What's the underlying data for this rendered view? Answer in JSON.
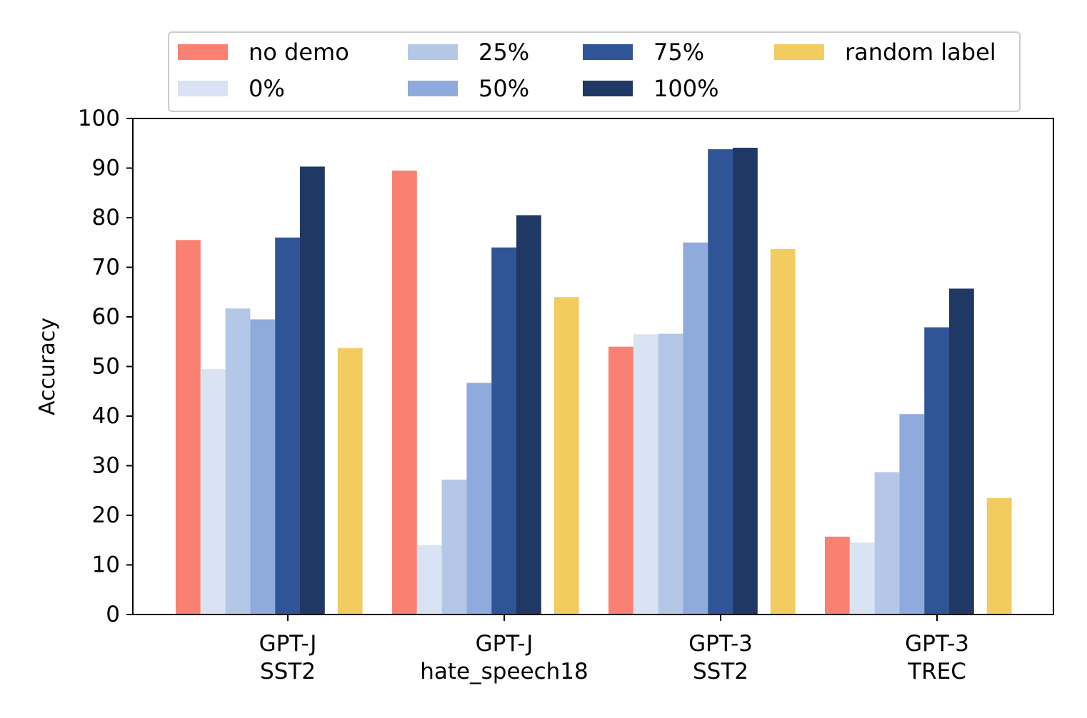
{
  "chart_data": {
    "type": "bar",
    "title": "",
    "ylabel": "Accuracy",
    "xlabel": "",
    "ylim": [
      0,
      100
    ],
    "yticks": [
      0,
      10,
      20,
      30,
      40,
      50,
      60,
      70,
      80,
      90,
      100
    ],
    "categories": [
      [
        "GPT-J",
        "SST2"
      ],
      [
        "GPT-J",
        "hate_speech18"
      ],
      [
        "GPT-3",
        "SST2"
      ],
      [
        "GPT-3",
        "TREC"
      ]
    ],
    "series": [
      {
        "name": "no demo",
        "color": "#fa8072",
        "values": [
          75.5,
          89.5,
          54.0,
          15.7
        ]
      },
      {
        "name": "0%",
        "color": "#dae3f3",
        "values": [
          49.5,
          14.0,
          56.5,
          14.5
        ]
      },
      {
        "name": "25%",
        "color": "#b4c7e7",
        "values": [
          61.7,
          27.2,
          56.6,
          28.7
        ]
      },
      {
        "name": "50%",
        "color": "#8faadc",
        "values": [
          59.5,
          46.7,
          75.0,
          40.4
        ]
      },
      {
        "name": "75%",
        "color": "#2f5597",
        "values": [
          76.0,
          74.0,
          93.8,
          57.9
        ]
      },
      {
        "name": "100%",
        "color": "#203864",
        "values": [
          90.3,
          80.5,
          94.1,
          65.7
        ]
      },
      {
        "name": "random label",
        "color": "#f2cc5f",
        "values": [
          53.7,
          64.0,
          73.7,
          23.5
        ]
      }
    ],
    "legend": {
      "placement": "top-center",
      "rows": [
        [
          "no demo",
          "25%",
          "75%",
          "random label"
        ],
        [
          "0%",
          "50%",
          "100%"
        ]
      ]
    },
    "grid": false
  }
}
